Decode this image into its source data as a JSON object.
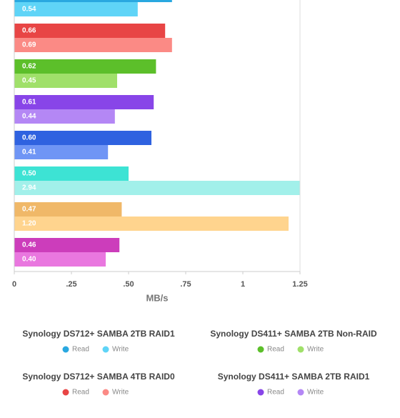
{
  "chart_data": {
    "type": "bar",
    "orientation": "horizontal",
    "x_label": "MB/s",
    "xlim": [
      0,
      1.25
    ],
    "xticks": [
      0,
      {
        "value": 0.25,
        "label": ".25"
      },
      {
        "value": 0.5,
        "label": ".50"
      },
      {
        "value": 0.75,
        "label": ".75"
      },
      1,
      1.25
    ],
    "legend_labels": [
      "Read",
      "Write"
    ],
    "series": [
      {
        "name": "Synology DS712+ SAMBA 2TB RAID1",
        "colors": [
          "#29a8e0",
          "#5fd4f7"
        ],
        "values": [
          0.69,
          0.54
        ],
        "value_labels": [
          null,
          "0.54"
        ]
      },
      {
        "name": "Synology DS712+ SAMBA 4TB RAID0",
        "colors": [
          "#e84545",
          "#fb8a85"
        ],
        "values": [
          0.66,
          0.69
        ],
        "value_labels": [
          "0.66",
          "0.69"
        ]
      },
      {
        "name": "Synology DS411+ SAMBA 2TB Non-RAID",
        "colors": [
          "#5cbf2a",
          "#a0e06a"
        ],
        "values": [
          0.62,
          0.45
        ],
        "value_labels": [
          "0.62",
          "0.45"
        ]
      },
      {
        "name": "Synology DS411+ SAMBA 2TB RAID1",
        "colors": [
          "#8845e8",
          "#b487f5"
        ],
        "values": [
          0.61,
          0.44
        ],
        "value_labels": [
          "0.61",
          "0.44"
        ]
      },
      {
        "colors": [
          "#2f62e0",
          "#6f95f5"
        ],
        "values": [
          0.6,
          0.41
        ],
        "value_labels": [
          "0.60",
          "0.41"
        ]
      },
      {
        "colors": [
          "#3de3d4",
          "#a2f0ea"
        ],
        "values": [
          0.5,
          2.94
        ],
        "value_labels": [
          "0.50",
          "2.94"
        ]
      },
      {
        "colors": [
          "#f0b868",
          "#ffd48e"
        ],
        "values": [
          0.47,
          1.2
        ],
        "value_labels": [
          "0.47",
          "1.20"
        ]
      },
      {
        "colors": [
          "#cc3dbb",
          "#e977df"
        ],
        "values": [
          0.46,
          0.4
        ],
        "value_labels": [
          "0.46",
          "0.40"
        ]
      }
    ]
  }
}
